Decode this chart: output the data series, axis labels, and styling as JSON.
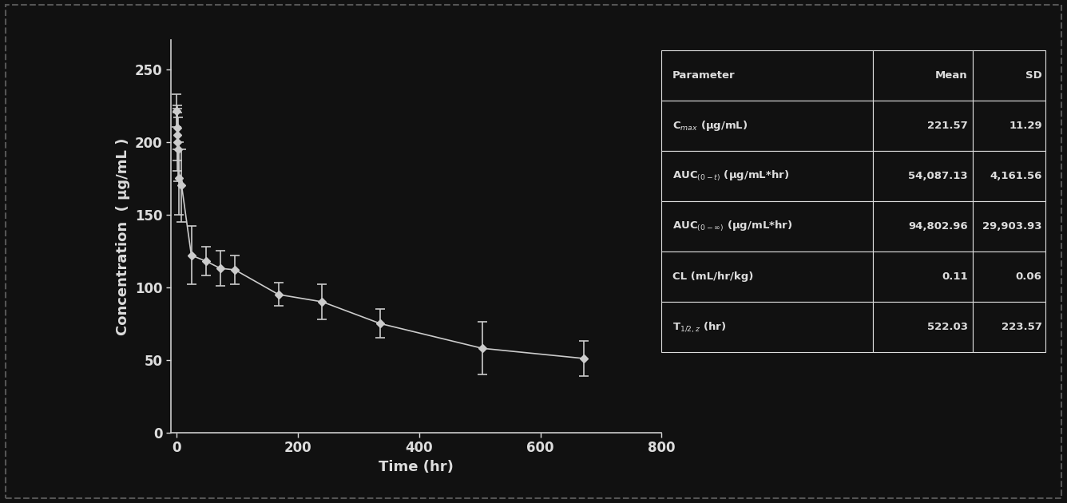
{
  "background_color": "#111111",
  "plot_bg_color": "#111111",
  "text_color": "#dddddd",
  "line_color": "#cccccc",
  "marker_color": "#cccccc",
  "x_values": [
    0.083,
    0.25,
    0.5,
    1,
    2,
    4,
    8,
    24,
    48,
    72,
    96,
    168,
    240,
    336,
    504,
    672
  ],
  "y_values": [
    221.57,
    210,
    205,
    200,
    195,
    175,
    170,
    122,
    118,
    113,
    112,
    95,
    90,
    75,
    58,
    51
  ],
  "y_err_lo": [
    11.29,
    15,
    18,
    20,
    22,
    25,
    25,
    20,
    10,
    12,
    10,
    8,
    12,
    10,
    18,
    12
  ],
  "y_err_hi": [
    11.29,
    15,
    18,
    20,
    22,
    25,
    25,
    20,
    10,
    12,
    10,
    8,
    12,
    10,
    18,
    12
  ],
  "xlabel": "Time (hr)",
  "ylabel": "Concentration  ( μg/mL )",
  "xlim": [
    -10,
    800
  ],
  "ylim": [
    0,
    270
  ],
  "xticks": [
    0,
    200,
    400,
    600,
    800
  ],
  "yticks": [
    0,
    50,
    100,
    150,
    200,
    250
  ],
  "table_headers": [
    "Parameter",
    "Mean",
    "SD"
  ],
  "table_rows": [
    [
      "C$_{max}$ (μg/mL)",
      "221.57",
      "11.29"
    ],
    [
      "AUC$_{(0-t)}$ (μg/mL*hr)",
      "54,087.13",
      "4,161.56"
    ],
    [
      "AUC$_{(0-∞)}$ (μg/mL*hr)",
      "94,802.96",
      "29,903.93"
    ],
    [
      "CL (mL/hr/kg)",
      "0.11",
      "0.06"
    ],
    [
      "T$_{1/2,z}$ (hr)",
      "522.03",
      "223.57"
    ]
  ],
  "outer_border_color": "#555555",
  "axis_fontsize": 13,
  "tick_fontsize": 12,
  "table_fontsize": 9.5
}
